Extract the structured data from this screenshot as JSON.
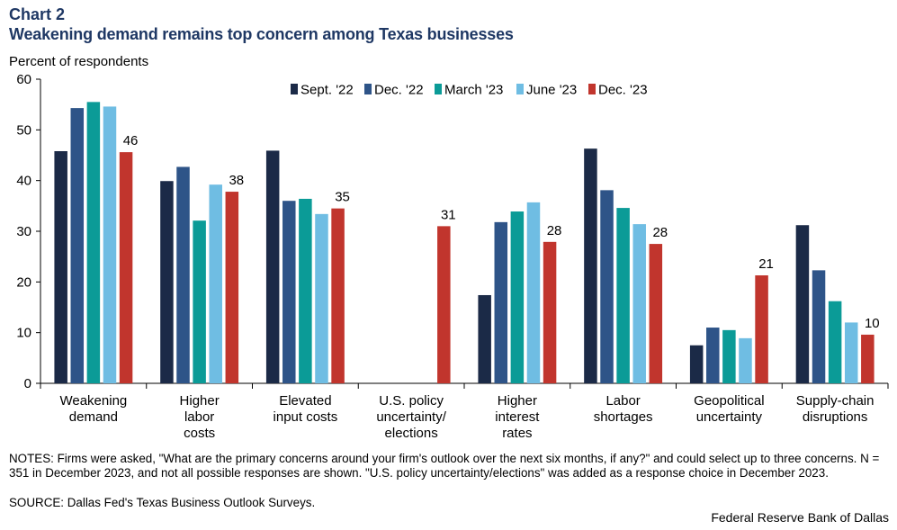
{
  "header": {
    "chart_label": "Chart 2",
    "title": "Weakening demand remains top concern among Texas businesses"
  },
  "notes": "NOTES: Firms were asked, \"What are the primary concerns around your firm's outlook over the next six months, if any?\" and could select up to three concerns. N = 351 in December 2023, and not all possible responses are shown. \"U.S. policy uncertainty/elections\" was added as a response choice in December 2023.",
  "source": "SOURCE: Dallas Fed's Texas Business Outlook Surveys.",
  "credit": "Federal Reserve Bank of Dallas",
  "chart_data": {
    "type": "bar",
    "title": "Weakening demand remains top concern among Texas businesses",
    "ylabel": "Percent of respondents",
    "xlabel": "",
    "ylim": [
      0,
      60
    ],
    "yticks": [
      0,
      10,
      20,
      30,
      40,
      50,
      60
    ],
    "grid": false,
    "legend_position": "top-right",
    "categories": [
      [
        "Weakening",
        "demand"
      ],
      [
        "Higher",
        "labor",
        "costs"
      ],
      [
        "Elevated",
        "input costs"
      ],
      [
        "U.S. policy",
        "uncertainty/",
        "elections"
      ],
      [
        "Higher",
        "interest",
        "rates"
      ],
      [
        "Labor",
        "shortages"
      ],
      [
        "Geopolitical",
        "uncertainty"
      ],
      [
        "Supply-chain",
        "disruptions"
      ]
    ],
    "series": [
      {
        "name": "Sept. '22",
        "color": "#1b2a47",
        "values": [
          45.8,
          39.9,
          45.9,
          null,
          17.4,
          46.3,
          7.5,
          31.2
        ]
      },
      {
        "name": "Dec. '22",
        "color": "#2e5488",
        "values": [
          54.3,
          42.7,
          36.0,
          null,
          31.8,
          38.1,
          11.0,
          22.3
        ]
      },
      {
        "name": "March '23",
        "color": "#0b9b97",
        "values": [
          55.5,
          32.1,
          36.4,
          null,
          33.9,
          34.6,
          10.5,
          16.2
        ]
      },
      {
        "name": "June '23",
        "color": "#6fbde3",
        "values": [
          54.6,
          39.2,
          33.4,
          null,
          35.7,
          31.4,
          8.9,
          12.0
        ]
      },
      {
        "name": "Dec. '23",
        "color": "#c1352d",
        "values": [
          45.6,
          37.8,
          34.5,
          31.0,
          27.9,
          27.5,
          21.3,
          9.6
        ]
      }
    ],
    "data_labels": [
      "46",
      "38",
      "35",
      "31",
      "28",
      "28",
      "21",
      "10"
    ]
  }
}
